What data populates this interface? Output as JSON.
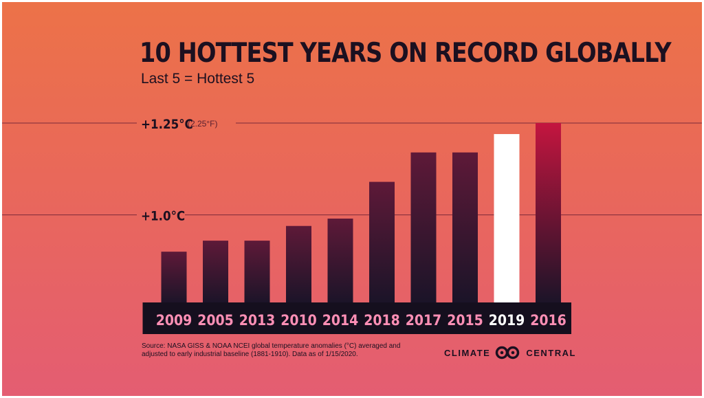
{
  "title": "10 HOTTEST YEARS ON RECORD GLOBALLY",
  "subtitle": "Last 5 = Hottest 5",
  "source": "Source: NASA GISS & NOAA NCEI global temperature anomalies (°C) averaged and adjusted to early industrial baseline (1881-1910). Data as of 1/15/2020.",
  "brand": {
    "left": "CLIMATE",
    "right": "CENTRAL",
    "logo_icon": "climate-central-logo-icon"
  },
  "colors": {
    "background_top": "#ec7248",
    "background_bottom": "#e45d72",
    "bar_top": "#5e1938",
    "bar_top_recent": "#c4153f",
    "bar_bottom": "#1a1428",
    "highlight_bar": "#ffffff",
    "label_strip": "#150f1e",
    "tick_label": "#ff8fb5",
    "highlight_label": "#ffffff"
  },
  "chart_data": {
    "type": "bar",
    "categories": [
      "2009",
      "2005",
      "2013",
      "2010",
      "2014",
      "2018",
      "2017",
      "2015",
      "2019",
      "2016"
    ],
    "values": [
      0.9,
      0.93,
      0.93,
      0.97,
      0.99,
      1.09,
      1.17,
      1.17,
      1.22,
      1.25
    ],
    "highlight": "2019",
    "gridlines": [
      {
        "value": 1.25,
        "label": "+1.25°C",
        "sublabel": "(2.25°F)"
      },
      {
        "value": 1.0,
        "label": "+1.0°C",
        "sublabel": ""
      }
    ],
    "ylim": [
      0.76,
      1.25
    ],
    "xlabel": "",
    "ylabel": "",
    "grid": true,
    "legend": "none"
  }
}
